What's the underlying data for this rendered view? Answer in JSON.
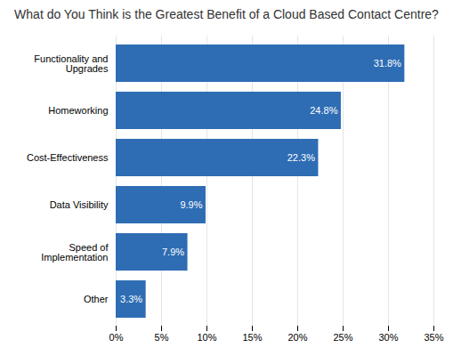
{
  "chart_data": {
    "type": "bar",
    "orientation": "horizontal",
    "title": "What do You Think is the Greatest Benefit of a Cloud Based Contact Centre?",
    "categories": [
      "Functionality and\nUpgrades",
      "Homeworking",
      "Cost-Effectiveness",
      "Data Visibility",
      "Speed of\nImplementation",
      "Other"
    ],
    "values": [
      31.8,
      24.8,
      22.3,
      9.9,
      7.9,
      3.3
    ],
    "value_labels": [
      "31.8%",
      "24.8%",
      "22.3%",
      "9.9%",
      "7.9%",
      "3.3%"
    ],
    "data_labels": true,
    "color": "#2E6DB4",
    "xlim": [
      0,
      35
    ],
    "xticks": [
      {
        "value": 0,
        "label": "0%"
      },
      {
        "value": 5,
        "label": "5%"
      },
      {
        "value": 10,
        "label": "10%"
      },
      {
        "value": 15,
        "label": "15%"
      },
      {
        "value": 20,
        "label": "20%"
      },
      {
        "value": 25,
        "label": "25%"
      },
      {
        "value": 30,
        "label": "30%"
      },
      {
        "value": 35,
        "label": "35%"
      }
    ],
    "grid": true
  }
}
